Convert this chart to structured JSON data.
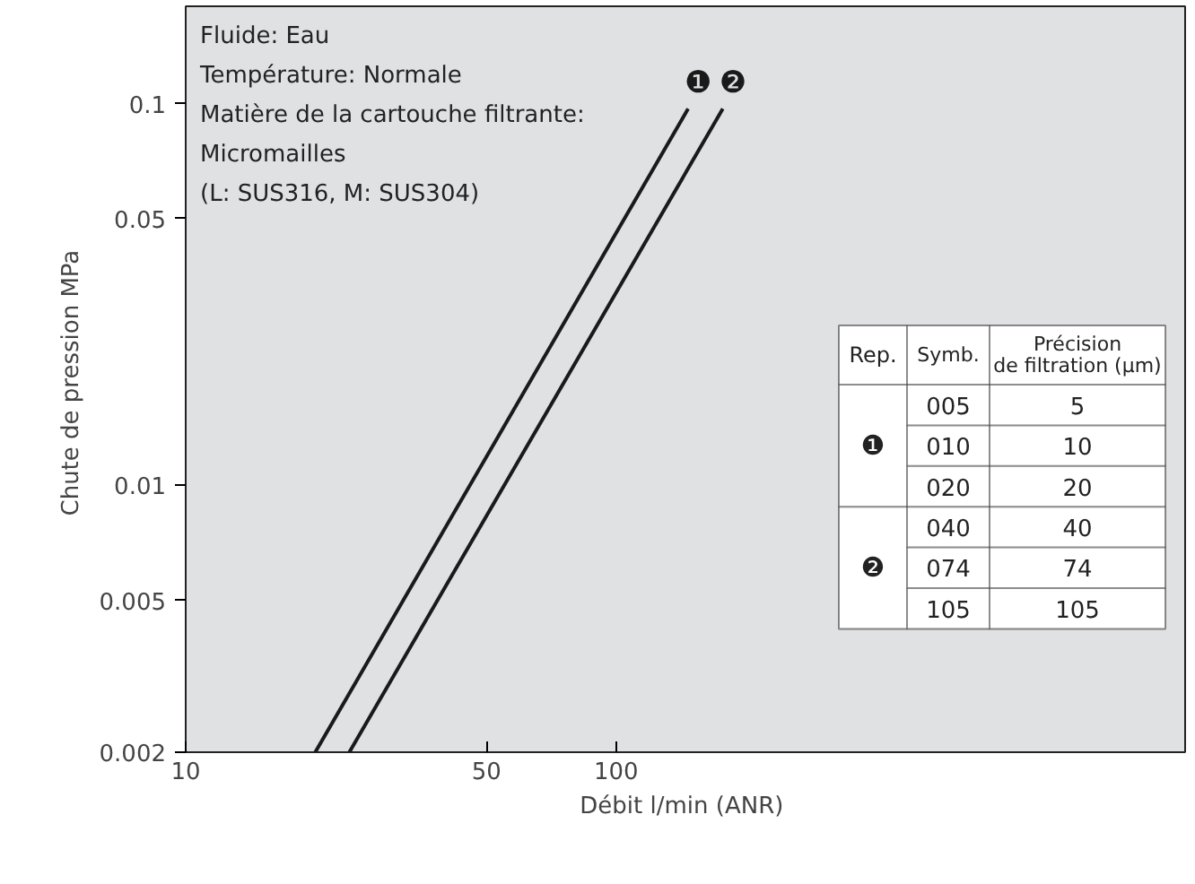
{
  "chart_data": {
    "type": "line",
    "xlabel": "Débit  l/min (ANR)",
    "ylabel": "Chute de pression  MPa",
    "log": "xy",
    "grid": false,
    "legend": "right",
    "marker": "none",
    "line_style": "solid",
    "xlim": [
      10,
      2100
    ],
    "ylim": [
      0.002,
      0.18
    ],
    "xticks": [
      10,
      50,
      100
    ],
    "yticks": [
      0.002,
      0.005,
      0.01,
      0.05,
      0.1
    ],
    "series": [
      {
        "name": "❶",
        "color": "#1a1a1a",
        "x": [
          20,
          147
        ],
        "values": [
          0.002,
          0.097
        ]
      },
      {
        "name": "❷",
        "color": "#1a1a1a",
        "x": [
          24,
          177
        ],
        "values": [
          0.002,
          0.097
        ]
      }
    ],
    "annotations": [
      "Fluide: Eau",
      "Température: Normale",
      "Matière de la cartouche filtrante:",
      "Micromailles",
      "(L: SUS316, M: SUS304)",
      "Rep.",
      "Symb.",
      "Précision de filtration (µm)",
      "005",
      "5",
      "010",
      "10",
      "020",
      "20",
      "040",
      "40",
      "074",
      "74",
      "105",
      "105"
    ]
  }
}
